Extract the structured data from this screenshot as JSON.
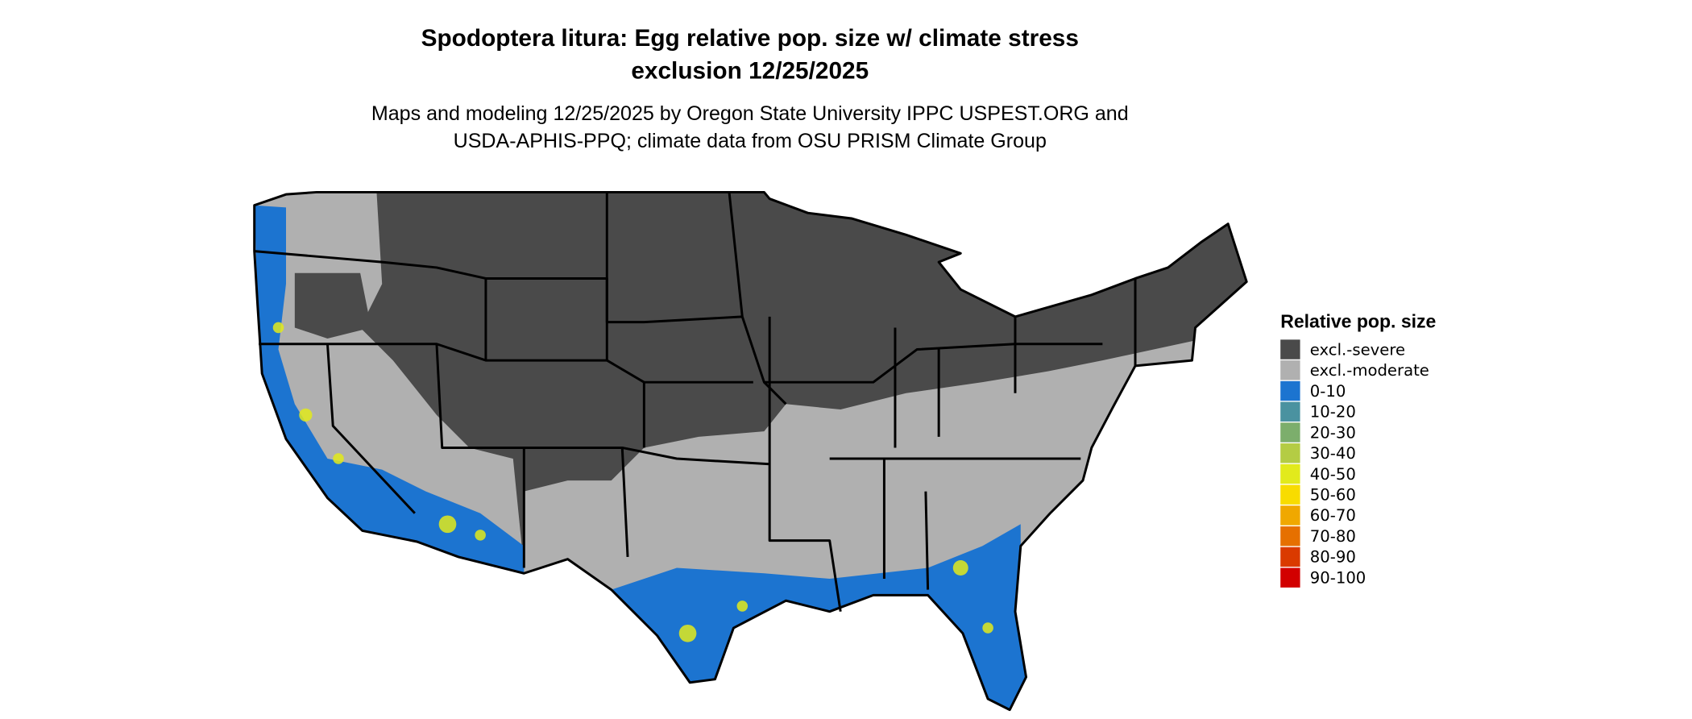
{
  "title": [
    "Spodoptera litura: Egg relative pop. size w/ climate stress",
    "exclusion 12/25/2025"
  ],
  "subtitle": [
    "Maps and modeling 12/25/2025 by Oregon State University IPPC USPEST.ORG and",
    "USDA-APHIS-PPQ; climate data from OSU PRISM Climate Group"
  ],
  "legend": {
    "title": "Relative pop. size",
    "items": [
      {
        "label": "excl.-severe",
        "color": "#4a4a4a"
      },
      {
        "label": "excl.-moderate",
        "color": "#b0b0b0"
      },
      {
        "label": "0-10",
        "color": "#1c74d0"
      },
      {
        "label": "10-20",
        "color": "#4a92a0"
      },
      {
        "label": "20-30",
        "color": "#7cae6c"
      },
      {
        "label": "30-40",
        "color": "#b4cc44"
      },
      {
        "label": "40-50",
        "color": "#e2ea1c"
      },
      {
        "label": "50-60",
        "color": "#f8dc00"
      },
      {
        "label": "60-70",
        "color": "#f0a800"
      },
      {
        "label": "70-80",
        "color": "#e67000"
      },
      {
        "label": "80-90",
        "color": "#da3a00"
      },
      {
        "label": "90-100",
        "color": "#d20000"
      }
    ]
  }
}
